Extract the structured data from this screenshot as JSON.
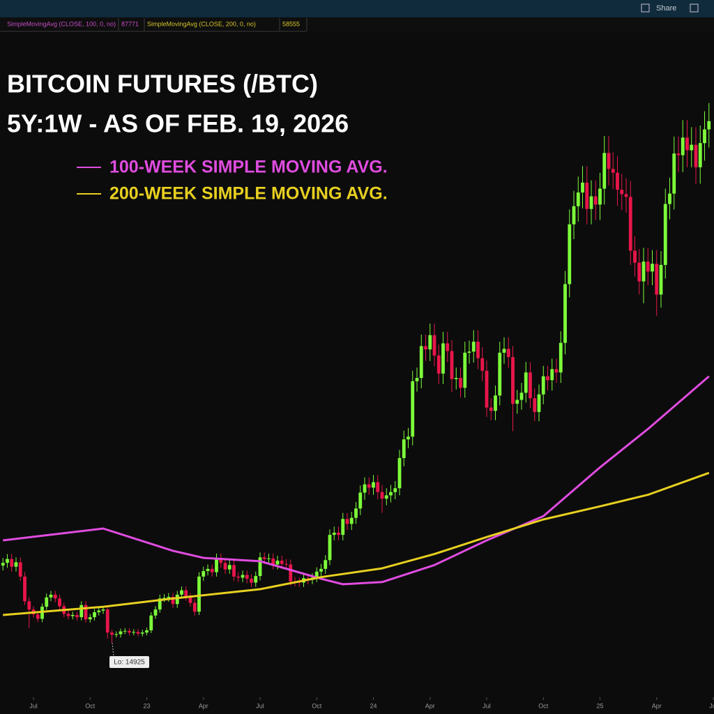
{
  "toolbar": {
    "share": "Share"
  },
  "studies": [
    {
      "label": "SimpleMovingAvg (CLOSE, 100, 0, no)",
      "value": 87771,
      "color": "#c44cc4"
    },
    {
      "label": "SimpleMovingAvg (CLOSE, 200, 0, no)",
      "value": 58555,
      "color": "#d6c42a"
    }
  ],
  "chart_data": {
    "type": "candlestick",
    "title": "BITCOIN FUTURES (/BTC)",
    "subtitle": "5Y:1W - AS OF FEB. 19, 2026",
    "up_color": "#7dff3a",
    "down_color": "#e8164a",
    "annotation": "Lo: 14925",
    "xlim": [
      -7.68,
      156.16
    ],
    "ylim": [
      5000,
      127000
    ],
    "xticks": [
      {
        "value": 0,
        "label": "Jul"
      },
      {
        "value": 13,
        "label": "Oct"
      },
      {
        "value": 26,
        "label": "23"
      },
      {
        "value": 39,
        "label": "Apr"
      },
      {
        "value": 52,
        "label": "Jul"
      },
      {
        "value": 65,
        "label": "Oct"
      },
      {
        "value": 78,
        "label": "24"
      },
      {
        "value": 91,
        "label": "Apr"
      },
      {
        "value": 104,
        "label": "Jul"
      },
      {
        "value": 117,
        "label": "Oct"
      },
      {
        "value": 130,
        "label": "25"
      },
      {
        "value": 143,
        "label": "Apr"
      },
      {
        "value": 156,
        "label": "Jul"
      }
    ],
    "x": [
      -7,
      -6,
      -5,
      -4,
      -3,
      -2,
      -1,
      0,
      1,
      2,
      3,
      4,
      5,
      6,
      7,
      8,
      9,
      10,
      11,
      12,
      13,
      14,
      15,
      16,
      17,
      18,
      19,
      20,
      21,
      22,
      23,
      24,
      25,
      26,
      27,
      28,
      29,
      30,
      31,
      32,
      33,
      34,
      35,
      36,
      37,
      38,
      39,
      40,
      41,
      42,
      43,
      44,
      45,
      46,
      47,
      48,
      49,
      50,
      51,
      52,
      53,
      54,
      55,
      56,
      57,
      58,
      59,
      60,
      61,
      62,
      63,
      64,
      65,
      66,
      67,
      68,
      69,
      70,
      71,
      72,
      73,
      74,
      75,
      76,
      77,
      78,
      79,
      80,
      81,
      82,
      83,
      84,
      85,
      86,
      87,
      88,
      89,
      90,
      91,
      92,
      93,
      94,
      95,
      96,
      97,
      98,
      99,
      100,
      101,
      102,
      103,
      104,
      105,
      106,
      107,
      108,
      109,
      110,
      111,
      112,
      113,
      114,
      115,
      116,
      117,
      118,
      119,
      120,
      121,
      122,
      123,
      124,
      125,
      126,
      127,
      128,
      129,
      130,
      131,
      132,
      133,
      134,
      135,
      136,
      137,
      138,
      139,
      140,
      141,
      142,
      143,
      144,
      145,
      146,
      147,
      148,
      149,
      150,
      151,
      152,
      153,
      154,
      155
    ],
    "open": [
      29000,
      29500,
      30200,
      28800,
      29600,
      27000,
      22500,
      21000,
      20100,
      19300,
      21500,
      23200,
      23700,
      23000,
      21600,
      20200,
      19800,
      20000,
      19600,
      21800,
      19200,
      19600,
      20500,
      20800,
      21000,
      16800,
      16400,
      16500,
      17000,
      17100,
      16800,
      16900,
      16600,
      16800,
      17200,
      19900,
      21000,
      23000,
      23100,
      23300,
      22000,
      23700,
      24500,
      23300,
      22200,
      20600,
      27000,
      28000,
      28400,
      27800,
      30300,
      29500,
      28300,
      29100,
      27000,
      26800,
      27300,
      26600,
      25900,
      27100,
      30500,
      30200,
      30300,
      29200,
      29900,
      29300,
      29200,
      26100,
      26000,
      25900,
      26700,
      26400,
      26800,
      27900,
      28400,
      30000,
      34600,
      35000,
      34600,
      37500,
      36600,
      37700,
      39400,
      42300,
      43800,
      43200,
      44200,
      42400,
      41200,
      41800,
      42400,
      43100,
      48600,
      52000,
      52500,
      62600,
      63200,
      69000,
      68400,
      71000,
      67300,
      64000,
      69500,
      68100,
      63000,
      63200,
      61400,
      67800,
      68000,
      69800,
      66800,
      64500,
      57800,
      57200,
      60000,
      67800,
      68500,
      67000,
      58500,
      59200,
      60500,
      64200,
      59500,
      57000,
      60200,
      63500,
      62800,
      64800,
      64200,
      69600,
      80300,
      91200,
      94500,
      97000,
      98800,
      94000,
      96300,
      94800,
      97700,
      104200,
      101300,
      100600,
      97500,
      96700,
      96200,
      86400,
      84200,
      80800,
      84400,
      82600,
      84000,
      78400,
      83800,
      94900,
      96800,
      104100,
      103800,
      107000,
      104700,
      105700,
      101600,
      106000,
      108500
    ],
    "high": [
      30400,
      31100,
      31100,
      30500,
      30500,
      27800,
      23200,
      21600,
      20700,
      22100,
      23900,
      24400,
      24400,
      23700,
      22200,
      20800,
      20600,
      20600,
      22500,
      22500,
      20200,
      21100,
      21400,
      21600,
      21600,
      17300,
      17000,
      17500,
      17600,
      17600,
      17400,
      17400,
      17300,
      17700,
      20500,
      21600,
      23700,
      23800,
      24000,
      24000,
      24400,
      25200,
      25200,
      24000,
      22900,
      27800,
      28800,
      29200,
      29200,
      31200,
      31200,
      30400,
      30000,
      30000,
      27800,
      28100,
      28100,
      27400,
      27900,
      31400,
      31400,
      31200,
      31200,
      30800,
      30800,
      30200,
      30100,
      26900,
      26800,
      27500,
      27500,
      27600,
      28700,
      29300,
      30900,
      35600,
      36100,
      36100,
      38600,
      38600,
      38800,
      40600,
      43600,
      45100,
      45100,
      45500,
      45500,
      43700,
      43100,
      43700,
      44400,
      50100,
      53600,
      54100,
      64500,
      65100,
      71100,
      71100,
      73100,
      73100,
      69300,
      71600,
      71600,
      70100,
      65100,
      65100,
      69800,
      70000,
      71900,
      71900,
      68800,
      66400,
      59500,
      61800,
      69800,
      70600,
      70600,
      69000,
      61000,
      62300,
      66100,
      66100,
      61300,
      62000,
      65400,
      65400,
      66700,
      66700,
      71700,
      82700,
      93900,
      97300,
      99900,
      101800,
      101800,
      99200,
      99200,
      100600,
      107300,
      107300,
      104300,
      103600,
      100400,
      99600,
      99100,
      89000,
      86700,
      86900,
      86900,
      86500,
      86500,
      86300,
      97700,
      99700,
      107200,
      107200,
      110200,
      110200,
      108900,
      108900,
      109200,
      111800,
      113300
    ],
    "low": [
      28100,
      28600,
      27900,
      27900,
      26200,
      21800,
      17600,
      19500,
      18700,
      18700,
      20900,
      22500,
      22300,
      21000,
      19600,
      19200,
      19200,
      19000,
      19000,
      18600,
      18600,
      19000,
      19900,
      20200,
      15700,
      14925,
      15900,
      15900,
      16500,
      16300,
      16300,
      16100,
      16100,
      16300,
      16700,
      19300,
      20400,
      22400,
      22400,
      21300,
      21300,
      23000,
      22600,
      21500,
      19900,
      20000,
      26200,
      27200,
      27000,
      27000,
      28600,
      27500,
      27500,
      26200,
      26000,
      26000,
      25800,
      25100,
      25100,
      26300,
      29300,
      29300,
      28300,
      28300,
      28400,
      28300,
      25300,
      25200,
      25100,
      25100,
      25600,
      25600,
      26000,
      27100,
      27500,
      29100,
      33600,
      33600,
      33600,
      35500,
      35500,
      36600,
      38200,
      41000,
      41900,
      41900,
      41100,
      38600,
      40000,
      40500,
      41100,
      41800,
      47100,
      50400,
      50900,
      60700,
      61300,
      66300,
      66300,
      65300,
      62100,
      62100,
      66100,
      60600,
      61100,
      59600,
      59600,
      65800,
      66000,
      64800,
      62600,
      56100,
      55500,
      55500,
      58200,
      65800,
      65000,
      53500,
      56700,
      57400,
      58700,
      57700,
      55300,
      55300,
      58400,
      60900,
      60900,
      62300,
      62300,
      67500,
      77900,
      88500,
      91700,
      94100,
      91200,
      91200,
      92000,
      92000,
      94800,
      98300,
      97600,
      94600,
      93800,
      93300,
      83800,
      81700,
      78400,
      76800,
      80100,
      80100,
      74500,
      76000,
      81300,
      92100,
      93900,
      100700,
      100700,
      101600,
      101600,
      98600,
      98600,
      102800,
      105200
    ],
    "close": [
      29500,
      30200,
      28800,
      29600,
      27000,
      22500,
      21000,
      20100,
      19300,
      21500,
      23200,
      23700,
      23000,
      21600,
      20200,
      19800,
      20000,
      19600,
      21800,
      19200,
      19600,
      20500,
      20800,
      21000,
      16800,
      16400,
      16500,
      17000,
      17100,
      16800,
      16900,
      16600,
      16800,
      17200,
      19900,
      21000,
      23000,
      23100,
      23300,
      22000,
      23700,
      24500,
      23300,
      22200,
      20600,
      27000,
      28000,
      28400,
      27800,
      30300,
      29500,
      28300,
      29100,
      27000,
      26800,
      27300,
      26600,
      25900,
      27100,
      30500,
      30200,
      30300,
      29200,
      29900,
      29300,
      29200,
      26100,
      26000,
      25900,
      26700,
      26400,
      26800,
      27900,
      28400,
      30000,
      34600,
      35000,
      34600,
      37500,
      36600,
      37700,
      39400,
      42300,
      43800,
      43200,
      44200,
      42400,
      41200,
      41800,
      42400,
      43100,
      48600,
      52000,
      52500,
      62600,
      63200,
      69000,
      68400,
      71000,
      67300,
      64000,
      69500,
      68100,
      63000,
      63200,
      61400,
      67800,
      68000,
      69800,
      66800,
      64500,
      57800,
      57200,
      60000,
      67800,
      68500,
      67000,
      58500,
      59200,
      60500,
      64200,
      59500,
      57000,
      60200,
      63500,
      62800,
      64800,
      64200,
      69600,
      80300,
      91200,
      94500,
      97000,
      98800,
      94000,
      96300,
      94800,
      97700,
      104200,
      101300,
      100600,
      97500,
      96700,
      96200,
      86400,
      84200,
      80800,
      84400,
      82600,
      84000,
      78400,
      83800,
      94900,
      96800,
      104100,
      103800,
      107000,
      104700,
      105700,
      101600,
      106000,
      108500,
      110000
    ],
    "series": [
      {
        "name": "100-WEEK SIMPLE MOVING AVG.",
        "color": "#e04ce0",
        "x": [
          -7,
          16,
          32,
          39,
          52,
          66,
          71,
          80,
          92,
          104,
          117,
          130,
          141,
          155
        ],
        "values": [
          33600,
          35750,
          31700,
          30400,
          29800,
          26600,
          25600,
          26000,
          29100,
          33600,
          38000,
          46900,
          53900,
          63500
        ]
      },
      {
        "name": "200-WEEK SIMPLE MOVING AVG.",
        "color": "#e8d020",
        "x": [
          -7,
          16,
          32,
          52,
          66,
          80,
          92,
          104,
          117,
          130,
          141,
          155
        ],
        "values": [
          20000,
          21500,
          23000,
          24700,
          26900,
          28500,
          31100,
          34200,
          37400,
          39800,
          41900,
          45900
        ]
      }
    ]
  }
}
